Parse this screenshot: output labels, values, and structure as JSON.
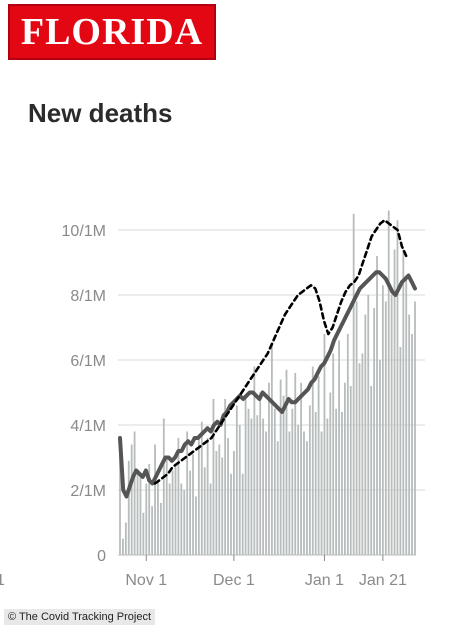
{
  "banner": {
    "text": "FLORIDA",
    "bg": "#e30613"
  },
  "chart_data": {
    "type": "bar",
    "title": "New deaths",
    "xlabel": "",
    "ylabel": "",
    "ylim": [
      0,
      11
    ],
    "yticks": [
      {
        "value": 0,
        "label": "0"
      },
      {
        "value": 2,
        "label": "2/1M"
      },
      {
        "value": 4,
        "label": "4/1M"
      },
      {
        "value": 6,
        "label": "6/1M"
      },
      {
        "value": 8,
        "label": "8/1M"
      },
      {
        "value": 10,
        "label": "10/1M"
      }
    ],
    "xticks": [
      {
        "day": 9,
        "label": "Nov 1"
      },
      {
        "day": 39,
        "label": "Dec 1"
      },
      {
        "day": 70,
        "label": "Jan 1"
      },
      {
        "day": 90,
        "label": "Jan 21"
      }
    ],
    "left_cut_label": "1",
    "grid": true,
    "bars": [
      3.5,
      0.5,
      1.0,
      2.9,
      3.4,
      3.8,
      2.6,
      2.4,
      1.3,
      2.2,
      2.8,
      1.5,
      3.4,
      2.3,
      1.6,
      4.2,
      3.0,
      2.2,
      2.6,
      2.8,
      3.6,
      2.2,
      2.0,
      3.8,
      2.6,
      3.1,
      1.8,
      3.6,
      4.1,
      2.7,
      3.6,
      2.2,
      4.8,
      3.2,
      3.4,
      3.0,
      4.8,
      3.6,
      2.5,
      3.2,
      4.6,
      4.0,
      2.5,
      4.8,
      4.5,
      4.2,
      5.8,
      4.3,
      5.0,
      4.2,
      3.8,
      5.3,
      6.5,
      4.5,
      3.5,
      5.4,
      4.9,
      5.7,
      3.8,
      4.5,
      5.6,
      4.0,
      5.3,
      3.8,
      3.5,
      4.6,
      5.8,
      4.4,
      5.5,
      3.8,
      6.8,
      4.2,
      5.0,
      6.2,
      4.5,
      6.6,
      4.4,
      5.3,
      6.8,
      5.2,
      10.5,
      7.8,
      5.9,
      6.2,
      7.4,
      8.0,
      5.2,
      7.6,
      9.2,
      6.0,
      8.3,
      7.8,
      10.6,
      8.0,
      9.4,
      10.3,
      6.4,
      9.4,
      8.6,
      7.4,
      6.8,
      7.8
    ],
    "series": [
      {
        "name": "",
        "style": "solid",
        "values": [
          3.6,
          2.0,
          1.8,
          2.1,
          2.4,
          2.6,
          2.5,
          2.4,
          2.6,
          2.3,
          2.2,
          2.4,
          2.6,
          2.8,
          3.0,
          3.0,
          2.9,
          3.0,
          3.2,
          3.2,
          3.4,
          3.5,
          3.4,
          3.6,
          3.6,
          3.7,
          3.8,
          3.9,
          3.8,
          4.0,
          4.1,
          4.0,
          4.3,
          4.4,
          4.6,
          4.7,
          4.8,
          4.9,
          4.8,
          4.9,
          5.0,
          5.0,
          4.9,
          4.8,
          5.0,
          4.9,
          4.8,
          4.7,
          4.6,
          4.5,
          4.4,
          4.6,
          4.8,
          4.7,
          4.7,
          4.8,
          4.9,
          5.0,
          5.1,
          5.3,
          5.4,
          5.6,
          5.8,
          5.9,
          6.1,
          6.3,
          6.6,
          6.8,
          7.0,
          7.2,
          7.4,
          7.6,
          7.8,
          8.0,
          8.2,
          8.3,
          8.4,
          8.5,
          8.6,
          8.7,
          8.7,
          8.6,
          8.5,
          8.3,
          8.1,
          8.0,
          8.2,
          8.4,
          8.5,
          8.6,
          8.4,
          8.2
        ],
        "color": "#555555"
      },
      {
        "name": "",
        "style": "dashed",
        "values": [
          2.2,
          2.3,
          2.4,
          2.5,
          2.7,
          2.8,
          2.9,
          3.0,
          3.1,
          3.2,
          3.3,
          3.4,
          3.5,
          3.6,
          3.8,
          4.0,
          4.2,
          4.4,
          4.6,
          4.8,
          5.0,
          5.2,
          5.4,
          5.6,
          5.8,
          6.0,
          6.2,
          6.5,
          6.8,
          7.1,
          7.4,
          7.6,
          7.8,
          8.0,
          8.1,
          8.2,
          8.3,
          8.2,
          7.8,
          7.2,
          6.8,
          7.0,
          7.4,
          7.8,
          8.1,
          8.3,
          8.4,
          8.6,
          9.0,
          9.4,
          9.8,
          10.0,
          10.2,
          10.3,
          10.2,
          10.1,
          10.0,
          9.5,
          9.2
        ],
        "color": "#000000"
      }
    ]
  },
  "credit": "© The Covid Tracking Project"
}
